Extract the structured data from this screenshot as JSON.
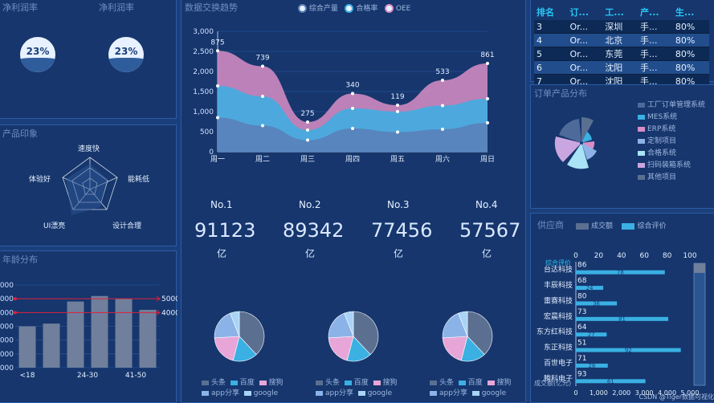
{
  "gauges": {
    "title1": "净利润率",
    "title2": "净利润率",
    "value1": "23%",
    "value2": "23%"
  },
  "radar": {
    "title": "产品印象",
    "labels": [
      "速度快",
      "能耗低",
      "设计合理",
      "UI漂亮",
      "体验好"
    ]
  },
  "age": {
    "title": "年龄分布"
  },
  "trend": {
    "title": "数据交换趋势",
    "legend": [
      "综合产量",
      "合格率",
      "OEE"
    ]
  },
  "rank_table": {
    "headers": [
      "排名",
      "订...",
      "工...",
      "产...",
      "生..."
    ],
    "rows": [
      [
        "3",
        "Or...",
        "深圳",
        "手...",
        "80%"
      ],
      [
        "4",
        "Or...",
        "北京",
        "手...",
        "80%"
      ],
      [
        "5",
        "Or...",
        "东莞",
        "手...",
        "80%"
      ],
      [
        "6",
        "Or...",
        "沈阳",
        "手...",
        "80%"
      ],
      [
        "7",
        "Or...",
        "沈阳",
        "手...",
        "80%"
      ]
    ]
  },
  "order_dist": {
    "title": "订单产品分布",
    "items": [
      "工厂订单管理系统",
      "MES系统",
      "ERP系统",
      "定制项目",
      "合格系统",
      "扫码装箱系统",
      "其他项目"
    ]
  },
  "kpis": [
    {
      "no": "No.1",
      "value": "91123",
      "unit": "亿"
    },
    {
      "no": "No.2",
      "value": "89342",
      "unit": "亿"
    },
    {
      "no": "No.3",
      "value": "77456",
      "unit": "亿"
    },
    {
      "no": "No.4",
      "value": "57567",
      "unit": "亿"
    }
  ],
  "pie_legend": {
    "row1": [
      "头条",
      "百度",
      "搜狗"
    ],
    "row2": [
      "app分享",
      "google"
    ]
  },
  "supplier": {
    "title": "供应商",
    "legend": [
      "成交额",
      "综合评价"
    ],
    "axis_top": [
      "0",
      "20",
      "40",
      "60",
      "80",
      "100"
    ],
    "axis_bottom": [
      "0",
      "1,000",
      "2,000",
      "3,000",
      "4,000",
      "5,000"
    ],
    "axis_top_name": "综合评价",
    "axis_bottom_name": "成交额(亿元)",
    "watermark": "CSDN @Tiger数据可视化",
    "names": [
      "台达科技",
      "丰辰科技",
      "雷赛科技",
      "宏晨科技",
      "东方红科技",
      "东正科技",
      "百世电子",
      "腾科电子"
    ],
    "scores": [
      "86",
      "68",
      "80",
      "73",
      "64",
      "51",
      "71",
      "93"
    ],
    "amounts": [
      "78",
      "24",
      "36",
      "81",
      "27",
      "92",
      "28",
      "61"
    ]
  },
  "chart_data": [
    {
      "type": "area",
      "title": "数据交换趋势",
      "categories": [
        "周一",
        "周二",
        "周三",
        "周四",
        "周五",
        "周六",
        "周日"
      ],
      "yticks": [
        "0",
        "500",
        "1,000",
        "1,500",
        "2,000",
        "2,500",
        "3,000"
      ],
      "ylim": [
        0,
        3000
      ],
      "series": [
        {
          "name": "综合产量",
          "values": [
            850,
            650,
            290,
            580,
            490,
            560,
            720
          ]
        },
        {
          "name": "合格率",
          "values": [
            1640,
            1380,
            540,
            1080,
            1000,
            1150,
            1320
          ]
        },
        {
          "name": "OEE",
          "values": [
            2515,
            2130,
            740,
            1450,
            1160,
            1780,
            2200
          ]
        }
      ],
      "labels": [
        "875",
        "739",
        "275",
        "340",
        "119",
        "533",
        "861"
      ],
      "colors": [
        "#5b7fb8",
        "#3ab0e3",
        "#d88ec6"
      ]
    },
    {
      "type": "bar",
      "title": "年龄分布",
      "categories": [
        "<18",
        "",
        "24-30",
        "",
        "41-50",
        ""
      ],
      "yticks": [
        "000",
        "000",
        "000",
        "000",
        "000",
        "000",
        "000"
      ],
      "ylim": [
        0,
        6000
      ],
      "values": [
        3000,
        3200,
        4800,
        5200,
        5000,
        4200
      ],
      "right_labels": [
        "5000",
        "4000"
      ]
    },
    {
      "type": "bar",
      "title": "供应商",
      "series": [
        {
          "name": "成交额",
          "values": [
            78,
            24,
            36,
            81,
            27,
            92,
            28,
            61
          ]
        },
        {
          "name": "综合评价",
          "values": [
            86,
            68,
            80,
            73,
            64,
            51,
            71,
            93
          ]
        }
      ]
    }
  ]
}
